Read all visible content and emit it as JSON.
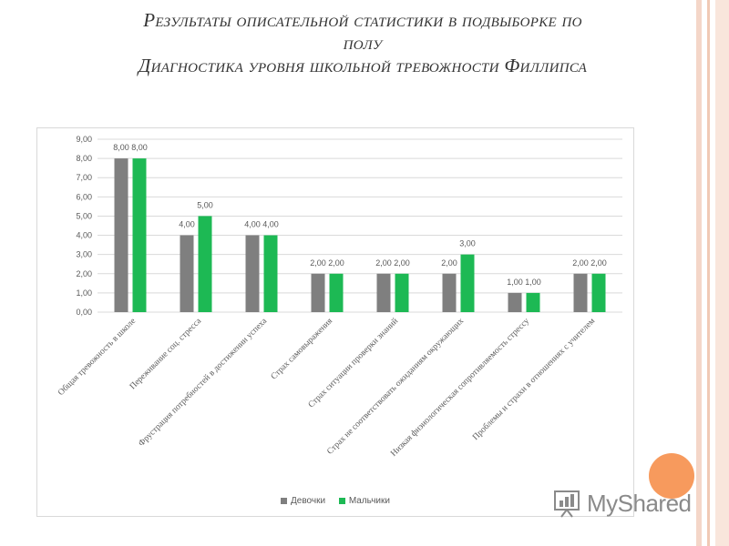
{
  "title": {
    "line1": "Результаты описательной статистики в подвыборке по",
    "line2": "полу",
    "line3": "Диагностика уровня школьной тревожности Филлипса"
  },
  "colors": {
    "girls": "#7f7f7f",
    "boys": "#1db954",
    "grid": "#d9d9d9",
    "accent_circle": "#f79a5d"
  },
  "watermark": {
    "text": "MyShared",
    "icon": "myshared-logo-icon"
  },
  "chart_data": {
    "type": "bar",
    "title": "",
    "xlabel": "",
    "ylabel": "",
    "ylim": [
      0,
      9
    ],
    "yticks": [
      0,
      1,
      2,
      3,
      4,
      5,
      6,
      7,
      8,
      9
    ],
    "ytick_labels": [
      "0,00",
      "1,00",
      "2,00",
      "3,00",
      "4,00",
      "5,00",
      "6,00",
      "7,00",
      "8,00",
      "9,00"
    ],
    "grid": true,
    "legend_position": "bottom",
    "categories": [
      "Общая тревожность в школе",
      "Переживание соц. стресса",
      "Фрустрация потребностей в достижении успеха",
      "Страх самовыражения",
      "Страх ситуации проверки знаний",
      "Страх не соответствовать ожиданиям окружающих",
      "Низкая физиологическая сопротивляемость стрессу",
      "Проблемы и страхи в отношениях с учителем"
    ],
    "series": [
      {
        "name": "Девочки",
        "values": [
          8,
          4,
          4,
          2,
          2,
          2,
          1,
          2
        ],
        "labels": [
          "8,00",
          "4,00",
          "4,00",
          "2,00",
          "2,00",
          "2,00",
          "1,00",
          "2,00"
        ]
      },
      {
        "name": "Мальчики",
        "values": [
          8,
          5,
          4,
          2,
          2,
          3,
          1,
          2
        ],
        "labels": [
          "8,00",
          "5,00",
          "4,00",
          "2,00",
          "2,00",
          "3,00",
          "1,00",
          "2,00"
        ]
      }
    ]
  }
}
